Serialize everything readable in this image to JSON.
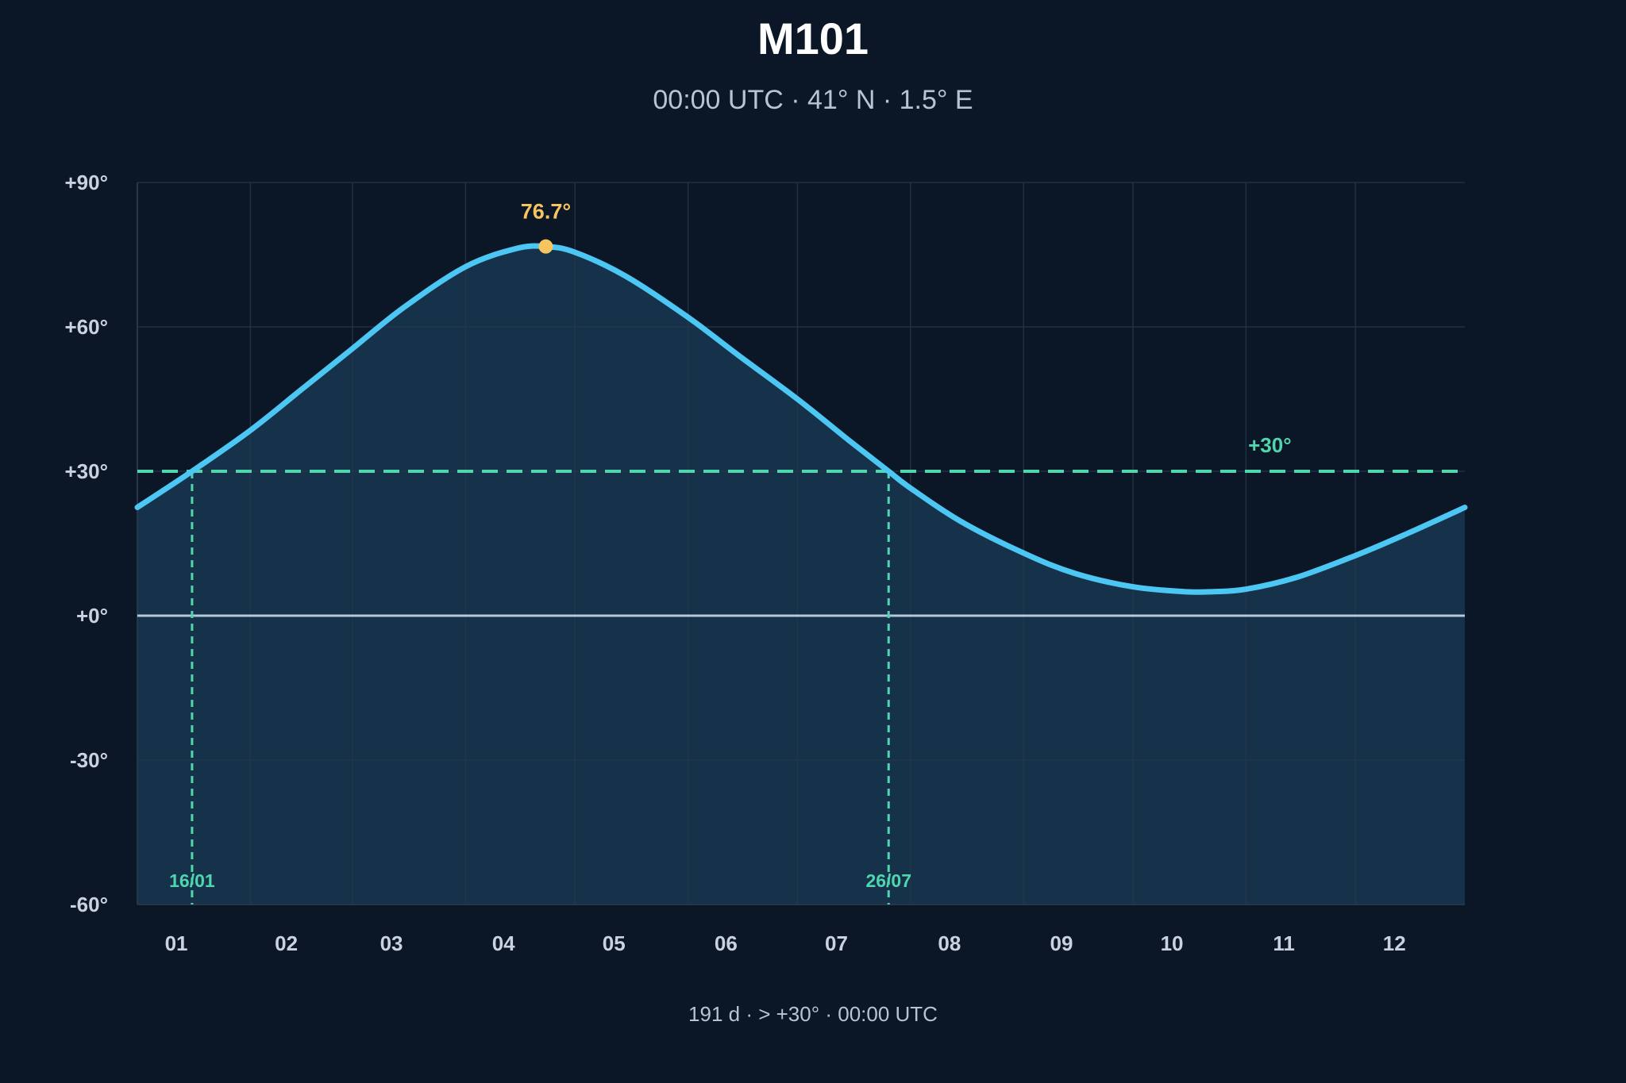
{
  "chart_data": {
    "type": "area",
    "title": "M101",
    "subtitle": "00:00 UTC · 41° N · 1.5° E",
    "footer": "191 d · > +30° · 00:00 UTC",
    "xlabel": "",
    "ylabel": "",
    "ylim": [
      -60,
      90
    ],
    "y_ticks": [
      90,
      60,
      30,
      0,
      -30,
      -60
    ],
    "y_tick_labels": [
      "+90°",
      "+60°",
      "+30°",
      "+0°",
      "-30°",
      "-60°"
    ],
    "x_tick_labels": [
      "01",
      "02",
      "03",
      "04",
      "05",
      "06",
      "07",
      "08",
      "09",
      "10",
      "11",
      "12"
    ],
    "x_unit": "day of year",
    "x_range": [
      1,
      365
    ],
    "month_starts": [
      1,
      32,
      60,
      91,
      121,
      152,
      182,
      213,
      244,
      274,
      305,
      335
    ],
    "series": [
      {
        "values_x": [
          1,
          16,
          32,
          46,
          60,
          74,
          91,
          105,
          113,
          121,
          135,
          152,
          166,
          182,
          196,
          207,
          213,
          227,
          244,
          258,
          274,
          288,
          296,
          305,
          319,
          335,
          349,
          365
        ],
        "values_y": [
          22.5,
          30,
          38.5,
          47,
          55.5,
          64,
          72.5,
          76.3,
          76.7,
          75.5,
          70.5,
          62,
          54,
          45,
          36.5,
          30,
          26.5,
          19.5,
          13,
          8.8,
          6,
          5,
          5,
          5.5,
          8,
          12.5,
          17,
          22.5
        ]
      }
    ],
    "threshold": {
      "value": 30,
      "label": "+30°"
    },
    "peak": {
      "x": 113,
      "y": 76.7,
      "label": "76.7°"
    },
    "crossings": [
      {
        "x": 16,
        "label": "16/01"
      },
      {
        "x": 207,
        "label": "26/07"
      }
    ],
    "grid": true,
    "colors": {
      "background": "#0b1626",
      "plot_top": "#0b1626",
      "fill": "#16324a",
      "line": "#4cc6f2",
      "grid": "#26374b",
      "zero_line": "#b4c8dc",
      "threshold": "#4fd6ad",
      "peak": "#f6c560"
    }
  }
}
